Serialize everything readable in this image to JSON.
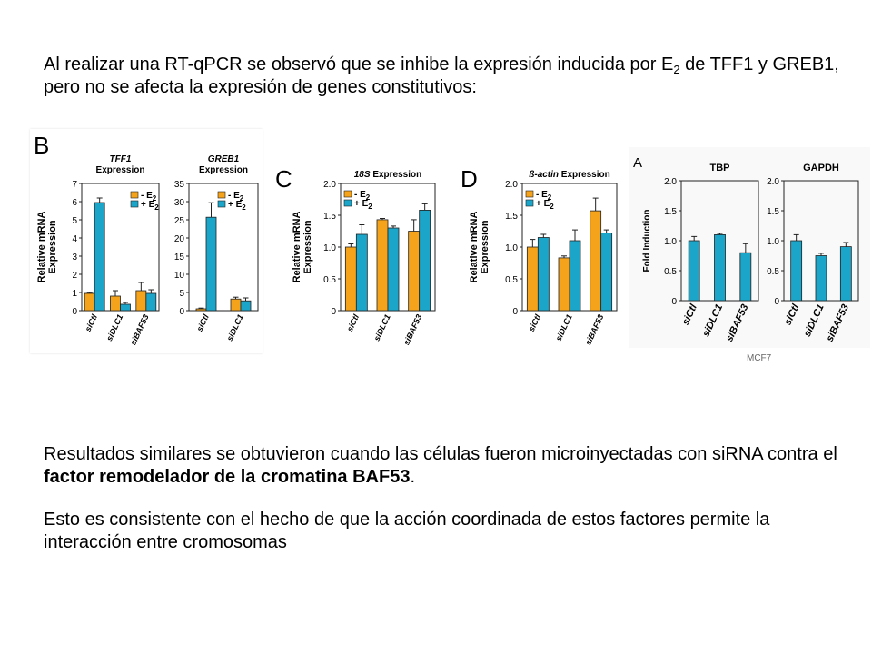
{
  "intro": {
    "part1": "Al realizar una RT-qPCR se observó que  se inhibe la expresión inducida por E",
    "sub": "2",
    "part2": " de TFF1 y GREB1, pero  no se afecta la expresión de genes constitutivos:"
  },
  "paragraph1": {
    "before": "Resultados similares se obtuvieron cuando las células fueron microinyectadas con siRNA contra el ",
    "bold": "factor remodelador de la cromatina BAF53",
    "after": "."
  },
  "paragraph2": "Esto es consistente con el hecho de que la acción coordinada de estos factores permite la interacción entre cromosomas",
  "mcf7_label": "MCF7",
  "colors": {
    "minus_e2": "#F5A31B",
    "plus_e2": "#1BA6C9",
    "single": "#1BA6C9"
  },
  "chart_data": [
    {
      "panel": "B",
      "type": "bar",
      "title": "TFF1 Expression",
      "title_gene": "TFF1",
      "title_rest": "Expression",
      "ylabel_line1": "Relative mRNA",
      "ylabel_line2": "Expression",
      "categories": [
        "siCtl",
        "siDLC1",
        "siBAF53"
      ],
      "ylim": [
        0,
        7
      ],
      "yticks": [
        "0",
        "1",
        "2",
        "3",
        "4",
        "5",
        "6",
        "7"
      ],
      "legend": [
        {
          "prefix": "- E",
          "sub": "2"
        },
        {
          "prefix": "+ E",
          "sub": "2"
        }
      ],
      "series": [
        {
          "values": [
            0.95,
            0.8,
            1.1
          ],
          "errors": [
            0.05,
            0.3,
            0.45
          ]
        },
        {
          "values": [
            5.95,
            0.35,
            0.95
          ],
          "errors": [
            0.25,
            0.1,
            0.2
          ]
        }
      ]
    },
    {
      "panel": "",
      "type": "bar",
      "title": "GREB1 Expression",
      "title_gene": "GREB1",
      "title_rest": "Expression",
      "categories": [
        "siCtl",
        "siDLC1"
      ],
      "ylim": [
        0,
        35
      ],
      "yticks": [
        "0",
        "5",
        "10",
        "15",
        "20",
        "25",
        "30",
        "35"
      ],
      "legend": [
        {
          "prefix": "- E",
          "sub": "2"
        },
        {
          "prefix": "+ E",
          "sub": "2"
        }
      ],
      "series": [
        {
          "values": [
            0.5,
            3.2
          ],
          "errors": [
            0.2,
            0.5
          ]
        },
        {
          "values": [
            25.7,
            2.7
          ],
          "errors": [
            4.0,
            0.8
          ]
        }
      ]
    },
    {
      "panel": "C",
      "type": "bar",
      "title": "18S Expression",
      "title_gene": "18S",
      "title_rest": "Expression",
      "ylabel_line1": "Relative mRNA",
      "ylabel_line2": "Expression",
      "categories": [
        "siCtl",
        "siDLC1",
        "siBAF53"
      ],
      "ylim": [
        0,
        2.0
      ],
      "yticks": [
        "0",
        "0.5",
        "1.0",
        "1.5",
        "2.0"
      ],
      "legend": [
        {
          "prefix": "- E",
          "sub": "2"
        },
        {
          "prefix": "+ E",
          "sub": "2"
        }
      ],
      "series": [
        {
          "values": [
            1.0,
            1.43,
            1.25
          ],
          "errors": [
            0.05,
            0.02,
            0.18
          ]
        },
        {
          "values": [
            1.2,
            1.3,
            1.58
          ],
          "errors": [
            0.15,
            0.03,
            0.1
          ]
        }
      ]
    },
    {
      "panel": "D",
      "type": "bar",
      "title": "ß-actin Expression",
      "title_gene": "ß-actin",
      "title_rest": "Expression",
      "ylabel_line1": "Relative mRNA",
      "ylabel_line2": "Expression",
      "categories": [
        "siCtl",
        "siDLC1",
        "siBAF53"
      ],
      "ylim": [
        0,
        2.0
      ],
      "yticks": [
        "0",
        "0.5",
        "1.0",
        "1.5",
        "2.0"
      ],
      "legend": [
        {
          "prefix": "- E",
          "sub": "2"
        },
        {
          "prefix": "+ E",
          "sub": "2"
        }
      ],
      "series": [
        {
          "values": [
            1.0,
            0.83,
            1.57
          ],
          "errors": [
            0.12,
            0.03,
            0.2
          ]
        },
        {
          "values": [
            1.15,
            1.1,
            1.22
          ],
          "errors": [
            0.05,
            0.17,
            0.05
          ]
        }
      ]
    },
    {
      "panel": "A",
      "type": "bar",
      "title": "TBP",
      "ylabel": "Fold Induction",
      "categories": [
        "siCtl",
        "siDLC1",
        "siBAF53"
      ],
      "ylim": [
        0,
        2.0
      ],
      "yticks": [
        "0",
        "0.5",
        "1.0",
        "1.5",
        "2.0"
      ],
      "series": [
        {
          "values": [
            1.0,
            1.1,
            0.8
          ],
          "errors": [
            0.07,
            0.02,
            0.15
          ]
        }
      ]
    },
    {
      "panel": "",
      "type": "bar",
      "title": "GAPDH",
      "categories": [
        "siCtl",
        "siDLC1",
        "siBAF53"
      ],
      "ylim": [
        0,
        2.0
      ],
      "yticks": [
        "0",
        "0.5",
        "1.0",
        "1.5",
        "2.0"
      ],
      "series": [
        {
          "values": [
            1.0,
            0.75,
            0.9
          ],
          "errors": [
            0.1,
            0.04,
            0.07
          ]
        }
      ]
    }
  ]
}
